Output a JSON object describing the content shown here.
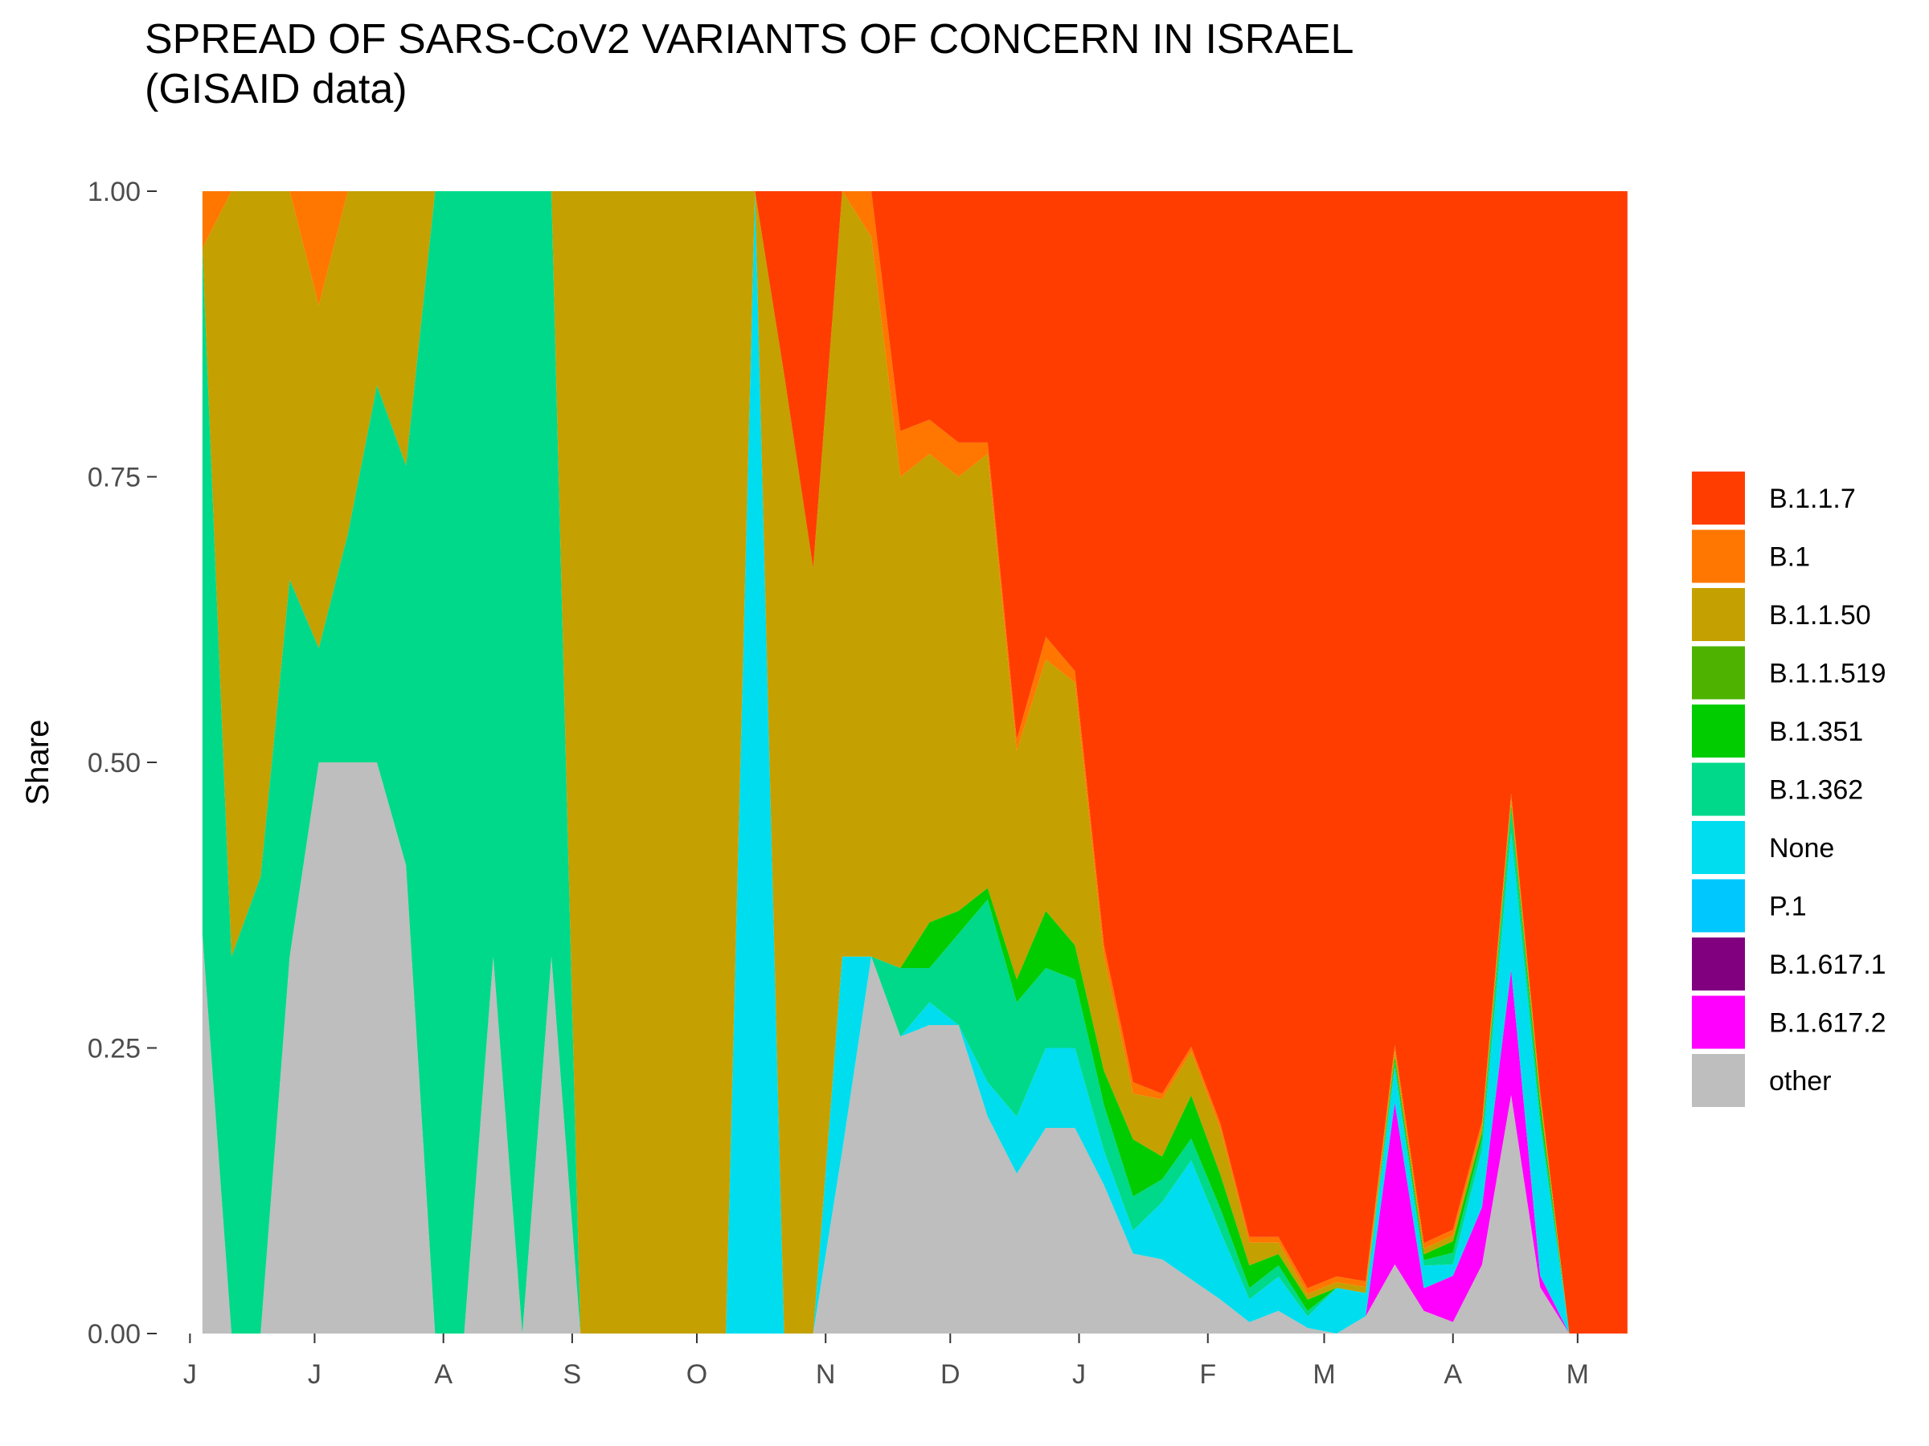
{
  "chart_data": {
    "type": "area",
    "stacked": true,
    "normalized": true,
    "title": [
      "SPREAD OF SARS-CoV2 VARIANTS OF CONCERN IN ISRAEL",
      "(GISAID data)"
    ],
    "xlabel": "",
    "ylabel": "Share",
    "ylim": [
      0,
      1
    ],
    "yticks": [
      0,
      0.25,
      0.5,
      0.75,
      1
    ],
    "ytick_labels": [
      "0.00",
      "0.25",
      "0.50",
      "0.75",
      "1.00"
    ],
    "grid": false,
    "legend_position": "right",
    "xticks": [
      {
        "date": "2020-06-01",
        "label": "J"
      },
      {
        "date": "2020-07-01",
        "label": "J"
      },
      {
        "date": "2020-08-01",
        "label": "A"
      },
      {
        "date": "2020-09-01",
        "label": "S"
      },
      {
        "date": "2020-10-01",
        "label": "O"
      },
      {
        "date": "2020-11-01",
        "label": "N"
      },
      {
        "date": "2020-12-01",
        "label": "D"
      },
      {
        "date": "2021-01-01",
        "label": "J"
      },
      {
        "date": "2021-02-01",
        "label": "F"
      },
      {
        "date": "2021-03-01",
        "label": "M"
      },
      {
        "date": "2021-04-01",
        "label": "A"
      },
      {
        "date": "2021-05-01",
        "label": "M"
      }
    ],
    "x": [
      "2020-06-04",
      "2020-06-11",
      "2020-06-18",
      "2020-06-25",
      "2020-07-02",
      "2020-07-09",
      "2020-07-16",
      "2020-07-23",
      "2020-07-30",
      "2020-08-06",
      "2020-08-13",
      "2020-08-20",
      "2020-08-27",
      "2020-09-03",
      "2020-09-10",
      "2020-09-17",
      "2020-09-24",
      "2020-10-01",
      "2020-10-08",
      "2020-10-15",
      "2020-10-22",
      "2020-10-29",
      "2020-11-05",
      "2020-11-12",
      "2020-11-19",
      "2020-11-26",
      "2020-12-03",
      "2020-12-10",
      "2020-12-17",
      "2020-12-24",
      "2020-12-31",
      "2021-01-07",
      "2021-01-14",
      "2021-01-21",
      "2021-01-28",
      "2021-02-04",
      "2021-02-11",
      "2021-02-18",
      "2021-02-25",
      "2021-03-04",
      "2021-03-11",
      "2021-03-18",
      "2021-03-25",
      "2021-04-01",
      "2021-04-08",
      "2021-04-15",
      "2021-04-22",
      "2021-04-29",
      "2021-05-06",
      "2021-05-13"
    ],
    "series": [
      {
        "name": "other",
        "color": "#bebebe",
        "values": [
          0.35,
          0,
          0,
          0.33,
          0.5,
          0.5,
          0.5,
          0.41,
          0,
          0,
          0.33,
          0,
          0.33,
          0,
          0,
          0,
          0,
          0,
          0,
          0,
          0,
          0,
          0.16,
          0.33,
          0.26,
          0.27,
          0.27,
          0.19,
          0.14,
          0.18,
          0.18,
          0.13,
          0.07,
          0.065,
          0.05,
          0.03,
          0.01,
          0.02,
          0.005,
          0,
          0.015,
          0.06,
          0.02,
          0.01,
          0.06,
          0.21,
          0.04,
          0,
          0,
          0
        ]
      },
      {
        "name": "B.1.617.2",
        "color": "#ff00ff",
        "values": [
          0,
          0,
          0,
          0,
          0,
          0,
          0,
          0,
          0,
          0,
          0,
          0,
          0,
          0,
          0,
          0,
          0,
          0,
          0,
          0,
          0,
          0,
          0,
          0,
          0,
          0,
          0,
          0,
          0,
          0,
          0,
          0,
          0,
          0,
          0,
          0,
          0,
          0,
          0,
          0,
          0,
          0.14,
          0.02,
          0.04,
          0.05,
          0.11,
          0.01,
          0,
          0,
          0
        ]
      },
      {
        "name": "B.1.617.1",
        "color": "#800080",
        "values": [
          0,
          0,
          0,
          0,
          0,
          0,
          0,
          0,
          0,
          0,
          0,
          0,
          0,
          0,
          0,
          0,
          0,
          0,
          0,
          0,
          0,
          0,
          0,
          0,
          0,
          0,
          0,
          0,
          0,
          0,
          0,
          0,
          0,
          0,
          0,
          0,
          0,
          0,
          0,
          0,
          0,
          0,
          0,
          0,
          0,
          0,
          0,
          0,
          0,
          0
        ]
      },
      {
        "name": "P.1",
        "color": "#00c8ff",
        "values": [
          0,
          0,
          0,
          0,
          0,
          0,
          0,
          0,
          0,
          0,
          0,
          0,
          0,
          0,
          0,
          0,
          0,
          0,
          0,
          0,
          0,
          0,
          0,
          0,
          0,
          0,
          0,
          0,
          0,
          0,
          0,
          0,
          0,
          0,
          0,
          0,
          0,
          0,
          0,
          0,
          0,
          0,
          0,
          0,
          0,
          0,
          0,
          0,
          0,
          0
        ]
      },
      {
        "name": "None",
        "color": "#00ddee",
        "values": [
          0,
          0,
          0,
          0,
          0,
          0,
          0,
          0,
          0,
          0,
          0,
          0,
          0,
          0,
          0,
          0,
          0,
          0,
          0,
          1,
          0,
          0,
          0.17,
          0,
          0,
          0.02,
          0,
          0.03,
          0.05,
          0.07,
          0.07,
          0.03,
          0.02,
          0.05,
          0.11,
          0.06,
          0.02,
          0.03,
          0.01,
          0.04,
          0.02,
          0.03,
          0.02,
          0.01,
          0.05,
          0.12,
          0.13,
          0,
          0,
          0
        ]
      },
      {
        "name": "B.1.362",
        "color": "#00d989",
        "values": [
          0.6,
          0.33,
          0.4,
          0.33,
          0.1,
          0.2,
          0.33,
          0.35,
          1,
          1,
          0.67,
          1,
          0.67,
          0,
          0,
          0,
          0,
          0,
          0,
          0,
          0,
          0,
          0,
          0,
          0.06,
          0.03,
          0.08,
          0.16,
          0.1,
          0.07,
          0.06,
          0.04,
          0.03,
          0.02,
          0.02,
          0.02,
          0.01,
          0.01,
          0.005,
          0,
          0,
          0.005,
          0.005,
          0.01,
          0.01,
          0.02,
          0.01,
          0,
          0,
          0
        ]
      },
      {
        "name": "B.1.351",
        "color": "#00cc00",
        "values": [
          0,
          0,
          0,
          0,
          0,
          0,
          0,
          0,
          0,
          0,
          0,
          0,
          0,
          0,
          0,
          0,
          0,
          0,
          0,
          0,
          0,
          0,
          0,
          0,
          0,
          0.04,
          0.02,
          0.01,
          0.02,
          0.05,
          0.03,
          0.03,
          0.05,
          0.02,
          0.04,
          0.03,
          0.02,
          0.01,
          0.01,
          0,
          0,
          0.005,
          0.005,
          0.01,
          0.005,
          0.005,
          0.01,
          0,
          0,
          0
        ]
      },
      {
        "name": "B.1.1.519",
        "color": "#4db300",
        "values": [
          0,
          0,
          0,
          0,
          0,
          0,
          0,
          0,
          0,
          0,
          0,
          0,
          0,
          0,
          0,
          0,
          0,
          0,
          0,
          0,
          0,
          0,
          0,
          0,
          0,
          0,
          0,
          0,
          0,
          0,
          0,
          0,
          0,
          0,
          0,
          0,
          0,
          0,
          0,
          0,
          0,
          0,
          0,
          0,
          0,
          0,
          0,
          0,
          0,
          0
        ]
      },
      {
        "name": "B.1.1.50",
        "color": "#c4a000",
        "values": [
          0,
          0.67,
          0.6,
          0.34,
          0.3,
          0.3,
          0.17,
          0.24,
          0,
          0,
          0,
          0,
          0,
          1,
          1,
          1,
          1,
          1,
          1,
          0,
          0.84,
          0.67,
          0.67,
          0.63,
          0.43,
          0.41,
          0.38,
          0.38,
          0.2,
          0.22,
          0.23,
          0.1,
          0.04,
          0.05,
          0.04,
          0.04,
          0.02,
          0.01,
          0.005,
          0.005,
          0.005,
          0.005,
          0.005,
          0.005,
          0.005,
          0.005,
          0.005,
          0,
          0,
          0
        ]
      },
      {
        "name": "B.1",
        "color": "#ff7700",
        "values": [
          0.05,
          0,
          0,
          0,
          0.1,
          0,
          0,
          0,
          0,
          0,
          0,
          0,
          0,
          0,
          0,
          0,
          0,
          0,
          0,
          0,
          0,
          0,
          0,
          0.04,
          0.04,
          0.03,
          0.03,
          0.01,
          0.01,
          0.02,
          0.01,
          0.01,
          0.01,
          0.005,
          0.005,
          0.005,
          0.005,
          0.005,
          0.005,
          0.005,
          0.005,
          0.005,
          0.005,
          0.005,
          0.005,
          0.005,
          0.005,
          0,
          0,
          0
        ]
      },
      {
        "name": "B.1.1.7",
        "color": "#ff3d00",
        "values": [
          0,
          0,
          0,
          0,
          0,
          0,
          0,
          0,
          0,
          0,
          0,
          0,
          0,
          0,
          0,
          0,
          0,
          0,
          0,
          0,
          0.16,
          0.33,
          0,
          0,
          0.21,
          0.2,
          0.22,
          0.22,
          0.48,
          0.39,
          0.42,
          0.66,
          0.78,
          0.79,
          0.79,
          0.82,
          0.92,
          0.92,
          0.97,
          0.95,
          0.94,
          0.74,
          0.93,
          0.9,
          0.81,
          0.53,
          0.78,
          0,
          0,
          0
        ]
      }
    ]
  }
}
